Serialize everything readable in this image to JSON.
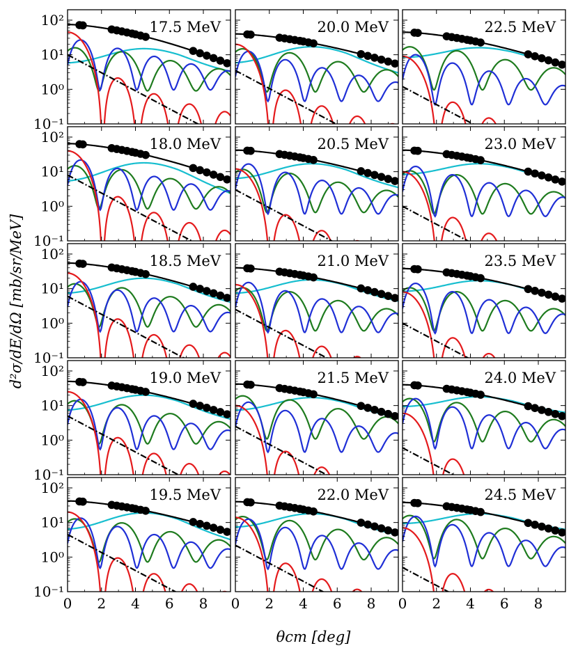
{
  "chart_data": {
    "type": "line",
    "layout": "grid-5x3",
    "ylabel": "d²σ/dE/dΩ [mb/sr/MeV]",
    "xlabel": "θcm [deg]",
    "xlim": [
      0,
      9.6
    ],
    "ylim": [
      0.1,
      200
    ],
    "yscale": "log",
    "xticks": [
      "0",
      "2",
      "4",
      "6",
      "8"
    ],
    "yticks": [
      "10⁻¹",
      "10⁰",
      "10¹",
      "10²"
    ],
    "series_colors": {
      "total": "#000000",
      "L0": "#e41a1c",
      "L1": "#1f2fd6",
      "L2": "#1e7b1e",
      "L3": "#17becf",
      "other": "#000000",
      "data": "#000000"
    },
    "data_angles": [
      0.7,
      0.9,
      2.6,
      2.9,
      3.2,
      3.5,
      3.8,
      4.0,
      4.3,
      4.6,
      7.4,
      7.8,
      8.2,
      8.6,
      9.0,
      9.4
    ],
    "panels": [
      {
        "title": "17.5 MeV",
        "amps": {
          "L0": 45,
          "L1": 32,
          "L2": 15,
          "L3": 15,
          "L3base": 5.5,
          "tot": 75,
          "totEnd": 5.2,
          "other": 10
        }
      },
      {
        "title": "20.0 MeV",
        "amps": {
          "L0": 20,
          "L1": 15,
          "L2": 14,
          "L3": 17,
          "L3base": 5.5,
          "tot": 40,
          "totEnd": 5.2,
          "other": 3.5
        }
      },
      {
        "title": "22.5 MeV",
        "amps": {
          "L0": 9,
          "L1": 12,
          "L2": 16,
          "L3": 16,
          "L3base": 8,
          "tot": 45,
          "totEnd": 4.8,
          "other": 1.2
        }
      },
      {
        "title": "18.0 MeV",
        "amps": {
          "L0": 40,
          "L1": 26,
          "L2": 14,
          "L3": 18,
          "L3base": 5,
          "tot": 65,
          "totEnd": 5.5,
          "other": 8
        }
      },
      {
        "title": "20.5 MeV",
        "amps": {
          "L0": 12,
          "L1": 20,
          "L2": 11,
          "L3": 17,
          "L3base": 6,
          "tot": 42,
          "totEnd": 5.0,
          "other": 3
        }
      },
      {
        "title": "23.0 MeV",
        "amps": {
          "L0": 10,
          "L1": 17,
          "L2": 10,
          "L3": 17,
          "L3base": 8,
          "tot": 42,
          "totEnd": 4.8,
          "other": 1.0
        }
      },
      {
        "title": "18.5 MeV",
        "amps": {
          "L0": 28,
          "L1": 19,
          "L2": 13,
          "L3": 20,
          "L3base": 7,
          "tot": 55,
          "totEnd": 5.0,
          "other": 6
        }
      },
      {
        "title": "21.0 MeV",
        "amps": {
          "L0": 13,
          "L1": 18,
          "L2": 10,
          "L3": 18,
          "L3base": 7,
          "tot": 40,
          "totEnd": 5.0,
          "other": 2.5
        }
      },
      {
        "title": "23.5 MeV",
        "amps": {
          "L0": 8,
          "L1": 17,
          "L2": 10,
          "L3": 17,
          "L3base": 8,
          "tot": 38,
          "totEnd": 4.8,
          "other": 1.0
        }
      },
      {
        "title": "19.0 MeV",
        "amps": {
          "L0": 25,
          "L1": 18,
          "L2": 13,
          "L3": 20,
          "L3base": 7,
          "tot": 50,
          "totEnd": 5.2,
          "other": 5
        }
      },
      {
        "title": "21.5 MeV",
        "amps": {
          "L0": 10,
          "L1": 15,
          "L2": 18,
          "L3": 17,
          "L3base": 7,
          "tot": 42,
          "totEnd": 4.6,
          "other": 2.5
        }
      },
      {
        "title": "24.0 MeV",
        "amps": {
          "L0": 6,
          "L1": 19,
          "L2": 15,
          "L3": 18,
          "L3base": 9,
          "tot": 40,
          "totEnd": 4.6,
          "other": 0.6
        }
      },
      {
        "title": "19.5 MeV",
        "amps": {
          "L0": 20,
          "L1": 16,
          "L2": 12,
          "L3": 19,
          "L3base": 6,
          "tot": 42,
          "totEnd": 5.0,
          "other": 4.5
        }
      },
      {
        "title": "22.0 MeV",
        "amps": {
          "L0": 14,
          "L1": 15,
          "L2": 14,
          "L3": 18,
          "L3base": 7,
          "tot": 40,
          "totEnd": 4.8,
          "other": 2.2
        }
      },
      {
        "title": "24.5 MeV",
        "amps": {
          "L0": 7,
          "L1": 18,
          "L2": 15,
          "L3": 18,
          "L3base": 9,
          "tot": 38,
          "totEnd": 4.8,
          "other": 0.5
        }
      }
    ]
  }
}
